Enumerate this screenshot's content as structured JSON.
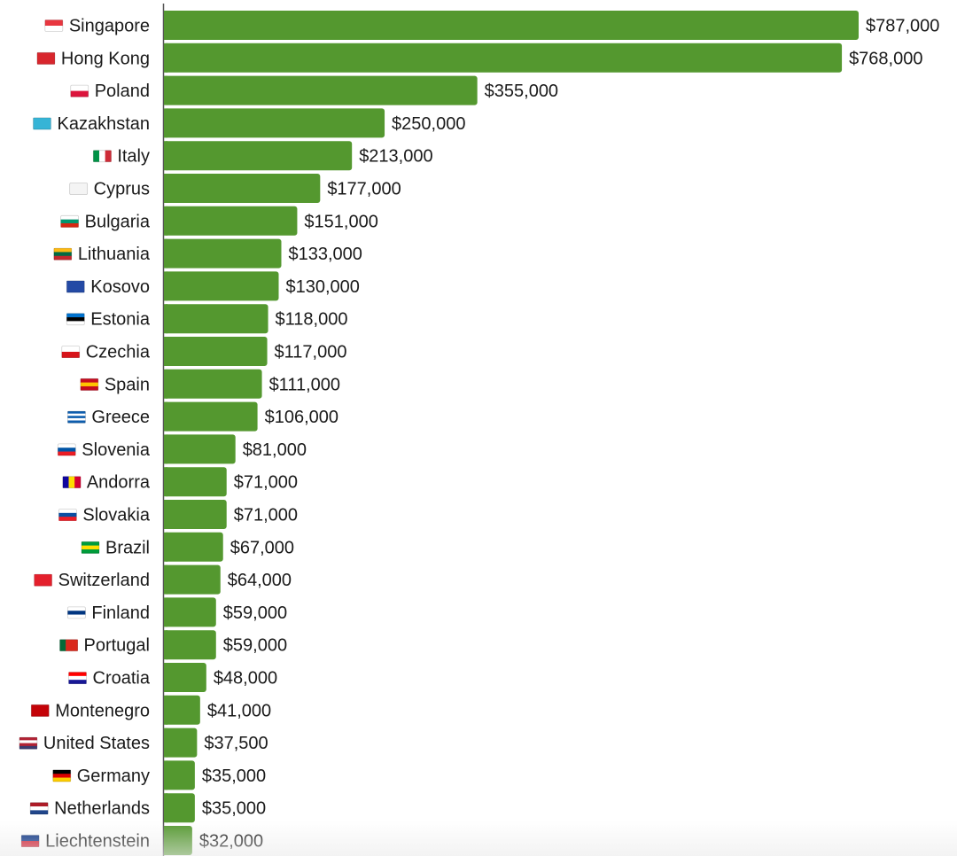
{
  "chart_data": {
    "type": "bar",
    "orientation": "horizontal",
    "title": "",
    "xlabel": "",
    "ylabel": "",
    "bar_color": "#54982f",
    "xlim": [
      0,
      787000
    ],
    "grid": false,
    "categories": [
      "Singapore",
      "Hong Kong",
      "Poland",
      "Kazakhstan",
      "Italy",
      "Cyprus",
      "Bulgaria",
      "Lithuania",
      "Kosovo",
      "Estonia",
      "Czechia",
      "Spain",
      "Greece",
      "Slovenia",
      "Andorra",
      "Slovakia",
      "Brazil",
      "Switzerland",
      "Finland",
      "Portugal",
      "Croatia",
      "Montenegro",
      "United States",
      "Germany",
      "Netherlands",
      "Liechtenstein"
    ],
    "values": [
      787000,
      768000,
      355000,
      250000,
      213000,
      177000,
      151000,
      133000,
      130000,
      118000,
      117000,
      111000,
      106000,
      81000,
      71000,
      71000,
      67000,
      64000,
      59000,
      59000,
      48000,
      41000,
      37500,
      35000,
      35000,
      32000
    ],
    "value_labels": [
      "$787,000",
      "$768,000",
      "$355,000",
      "$250,000",
      "$213,000",
      "$177,000",
      "$151,000",
      "$133,000",
      "$130,000",
      "$118,000",
      "$117,000",
      "$111,000",
      "$106,000",
      "$81,000",
      "$71,000",
      "$71,000",
      "$67,000",
      "$64,000",
      "$59,000",
      "$59,000",
      "$48,000",
      "$41,000",
      "$37,500",
      "$35,000",
      "$35,000",
      "$32,000"
    ],
    "flags": [
      {
        "dir": "h",
        "colors": [
          "#e8363f",
          "#ffffff"
        ]
      },
      {
        "dir": "h",
        "colors": [
          "#d8262d"
        ]
      },
      {
        "dir": "h",
        "colors": [
          "#ffffff",
          "#dc143c"
        ]
      },
      {
        "dir": "h",
        "colors": [
          "#36b4d6"
        ]
      },
      {
        "dir": "v",
        "colors": [
          "#009246",
          "#ffffff",
          "#ce2b37"
        ]
      },
      {
        "dir": "h",
        "colors": [
          "#f4f4f4"
        ]
      },
      {
        "dir": "h",
        "colors": [
          "#ffffff",
          "#00966e",
          "#d62612"
        ]
      },
      {
        "dir": "h",
        "colors": [
          "#fdb913",
          "#006a44",
          "#c1272d"
        ]
      },
      {
        "dir": "h",
        "colors": [
          "#244aa5"
        ]
      },
      {
        "dir": "h",
        "colors": [
          "#0072ce",
          "#000000",
          "#ffffff"
        ]
      },
      {
        "dir": "h",
        "colors": [
          "#ffffff",
          "#d7141a"
        ]
      },
      {
        "dir": "h",
        "colors": [
          "#c60b1e",
          "#ffc400",
          "#c60b1e"
        ]
      },
      {
        "dir": "h",
        "colors": [
          "#0d5eaf",
          "#ffffff",
          "#0d5eaf",
          "#ffffff",
          "#0d5eaf"
        ]
      },
      {
        "dir": "h",
        "colors": [
          "#ffffff",
          "#0054a6",
          "#ed1c24"
        ]
      },
      {
        "dir": "v",
        "colors": [
          "#10069f",
          "#fedd00",
          "#d50032"
        ]
      },
      {
        "dir": "h",
        "colors": [
          "#ffffff",
          "#0b4ea2",
          "#ee1c25"
        ]
      },
      {
        "dir": "h",
        "colors": [
          "#009c3b",
          "#ffdf00",
          "#009c3b"
        ]
      },
      {
        "dir": "h",
        "colors": [
          "#e4202c"
        ]
      },
      {
        "dir": "h",
        "colors": [
          "#ffffff",
          "#003580",
          "#ffffff"
        ]
      },
      {
        "dir": "v",
        "colors": [
          "#046a38",
          "#da291c",
          "#da291c"
        ]
      },
      {
        "dir": "h",
        "colors": [
          "#ff0000",
          "#ffffff",
          "#171796"
        ]
      },
      {
        "dir": "h",
        "colors": [
          "#c40308"
        ]
      },
      {
        "dir": "h",
        "colors": [
          "#b22234",
          "#ffffff",
          "#b22234",
          "#3c3b6e"
        ]
      },
      {
        "dir": "h",
        "colors": [
          "#000000",
          "#dd0000",
          "#ffce00"
        ]
      },
      {
        "dir": "h",
        "colors": [
          "#ae1c28",
          "#ffffff",
          "#21468b"
        ]
      },
      {
        "dir": "h",
        "colors": [
          "#002b7f",
          "#ce1126"
        ]
      }
    ]
  }
}
